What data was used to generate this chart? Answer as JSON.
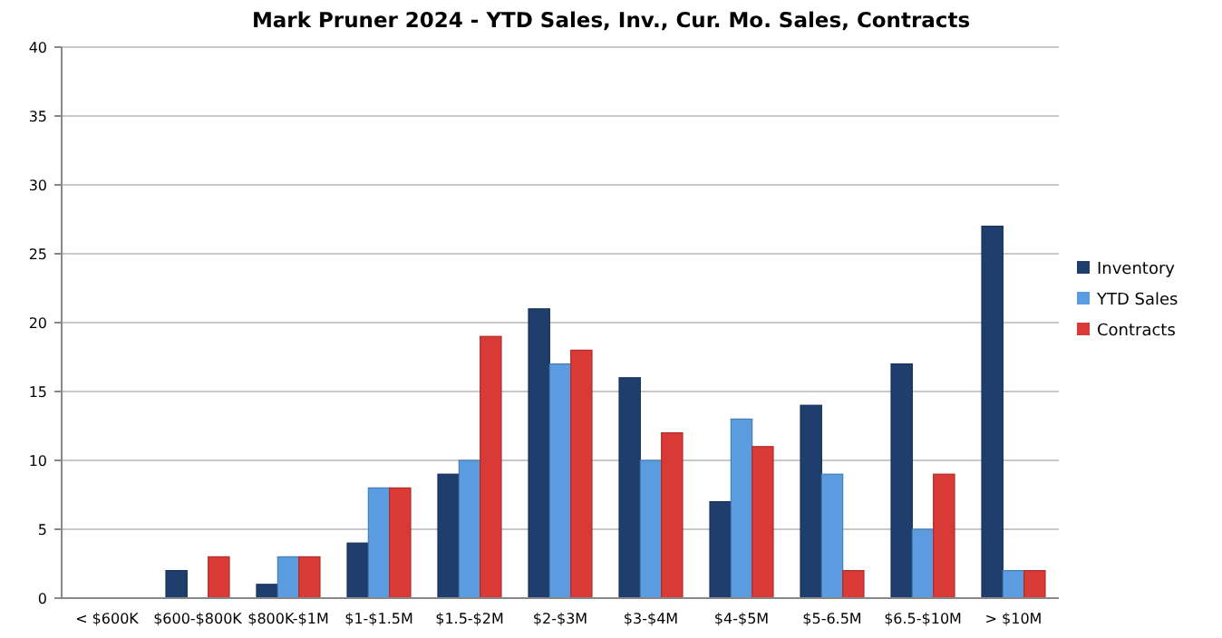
{
  "chart_data": {
    "type": "bar",
    "title": "Mark Pruner 2024 - YTD Sales, Inv., Cur. Mo. Sales, Contracts",
    "categories": [
      "< $600K",
      "$600-$800K",
      "$800K-$1M",
      "$1-$1.5M",
      "$1.5-$2M",
      "$2-$3M",
      "$3-$4M",
      "$4-$5M",
      "$5-6.5M",
      "$6.5-$10M",
      "> $10M"
    ],
    "series": [
      {
        "name": "Inventory",
        "color": "#1f3e6e",
        "values": [
          0,
          2,
          1,
          4,
          9,
          21,
          16,
          7,
          14,
          17,
          27
        ]
      },
      {
        "name": "YTD Sales",
        "color": "#5b9be0",
        "values": [
          0,
          0,
          3,
          8,
          10,
          17,
          10,
          13,
          9,
          5,
          2
        ]
      },
      {
        "name": "Contracts",
        "color": "#d93a36",
        "values": [
          0,
          3,
          3,
          8,
          19,
          18,
          12,
          11,
          2,
          9,
          2
        ]
      }
    ],
    "ylim": [
      0,
      40
    ],
    "yticks": [
      0,
      5,
      10,
      15,
      20,
      25,
      30,
      35,
      40
    ],
    "grid": "y",
    "legend": "right"
  }
}
